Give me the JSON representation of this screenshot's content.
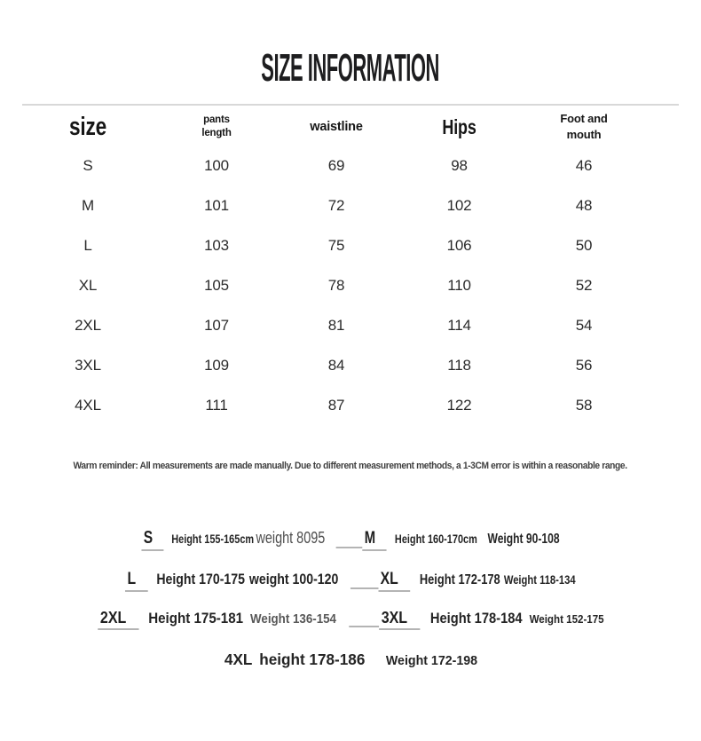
{
  "page": {
    "title": "SIZE INFORMATION",
    "note": "Warm reminder: All measurements are made manually. Due to different measurement methods, a 1-3CM error is within a reasonable range."
  },
  "table": {
    "headers": [
      "size",
      "pants\nlength",
      "waistline",
      "Hips",
      "Foot and\nmouth"
    ]
  },
  "chart_data": {
    "type": "table",
    "title": "SIZE INFORMATION",
    "columns": [
      "size",
      "pants length",
      "waistline",
      "Hips",
      "Foot and mouth"
    ],
    "rows": [
      [
        "S",
        "100",
        "69",
        "98",
        "46"
      ],
      [
        "M",
        "101",
        "72",
        "102",
        "48"
      ],
      [
        "L",
        "103",
        "75",
        "106",
        "50"
      ],
      [
        "XL",
        "105",
        "78",
        "110",
        "52"
      ],
      [
        "2XL",
        "107",
        "81",
        "114",
        "54"
      ],
      [
        "3XL",
        "109",
        "84",
        "118",
        "56"
      ],
      [
        "4XL",
        "111",
        "87",
        "122",
        "58"
      ]
    ]
  },
  "fit_guide": {
    "rows": [
      {
        "size_a": "S",
        "height_a": "Height 155-165cm",
        "weight_a": "weight 8095",
        "size_b": "M",
        "height_b": "Height 160-170cm",
        "weight_b": "Weight 90-108"
      },
      {
        "size_a": "L",
        "height_a": "Height 170-175",
        "weight_a": "weight 100-120",
        "size_b": "XL",
        "height_b": "Height 172-178",
        "weight_b": "Weight 118-134"
      },
      {
        "size_a": "2XL",
        "height_a": "Height 175-181",
        "weight_a": "Weight 136-154",
        "size_b": "3XL",
        "height_b": "Height 178-184",
        "weight_b": "Weight 152-175"
      },
      {
        "size_a": "4XL",
        "height_a": "height 178-186",
        "weight_a": "Weight 172-198"
      }
    ]
  },
  "colors": {
    "text": "#2d2d2d",
    "divider": "#d8d8d8",
    "underline": "#b4b4b4",
    "muted_gray": "#585858"
  }
}
